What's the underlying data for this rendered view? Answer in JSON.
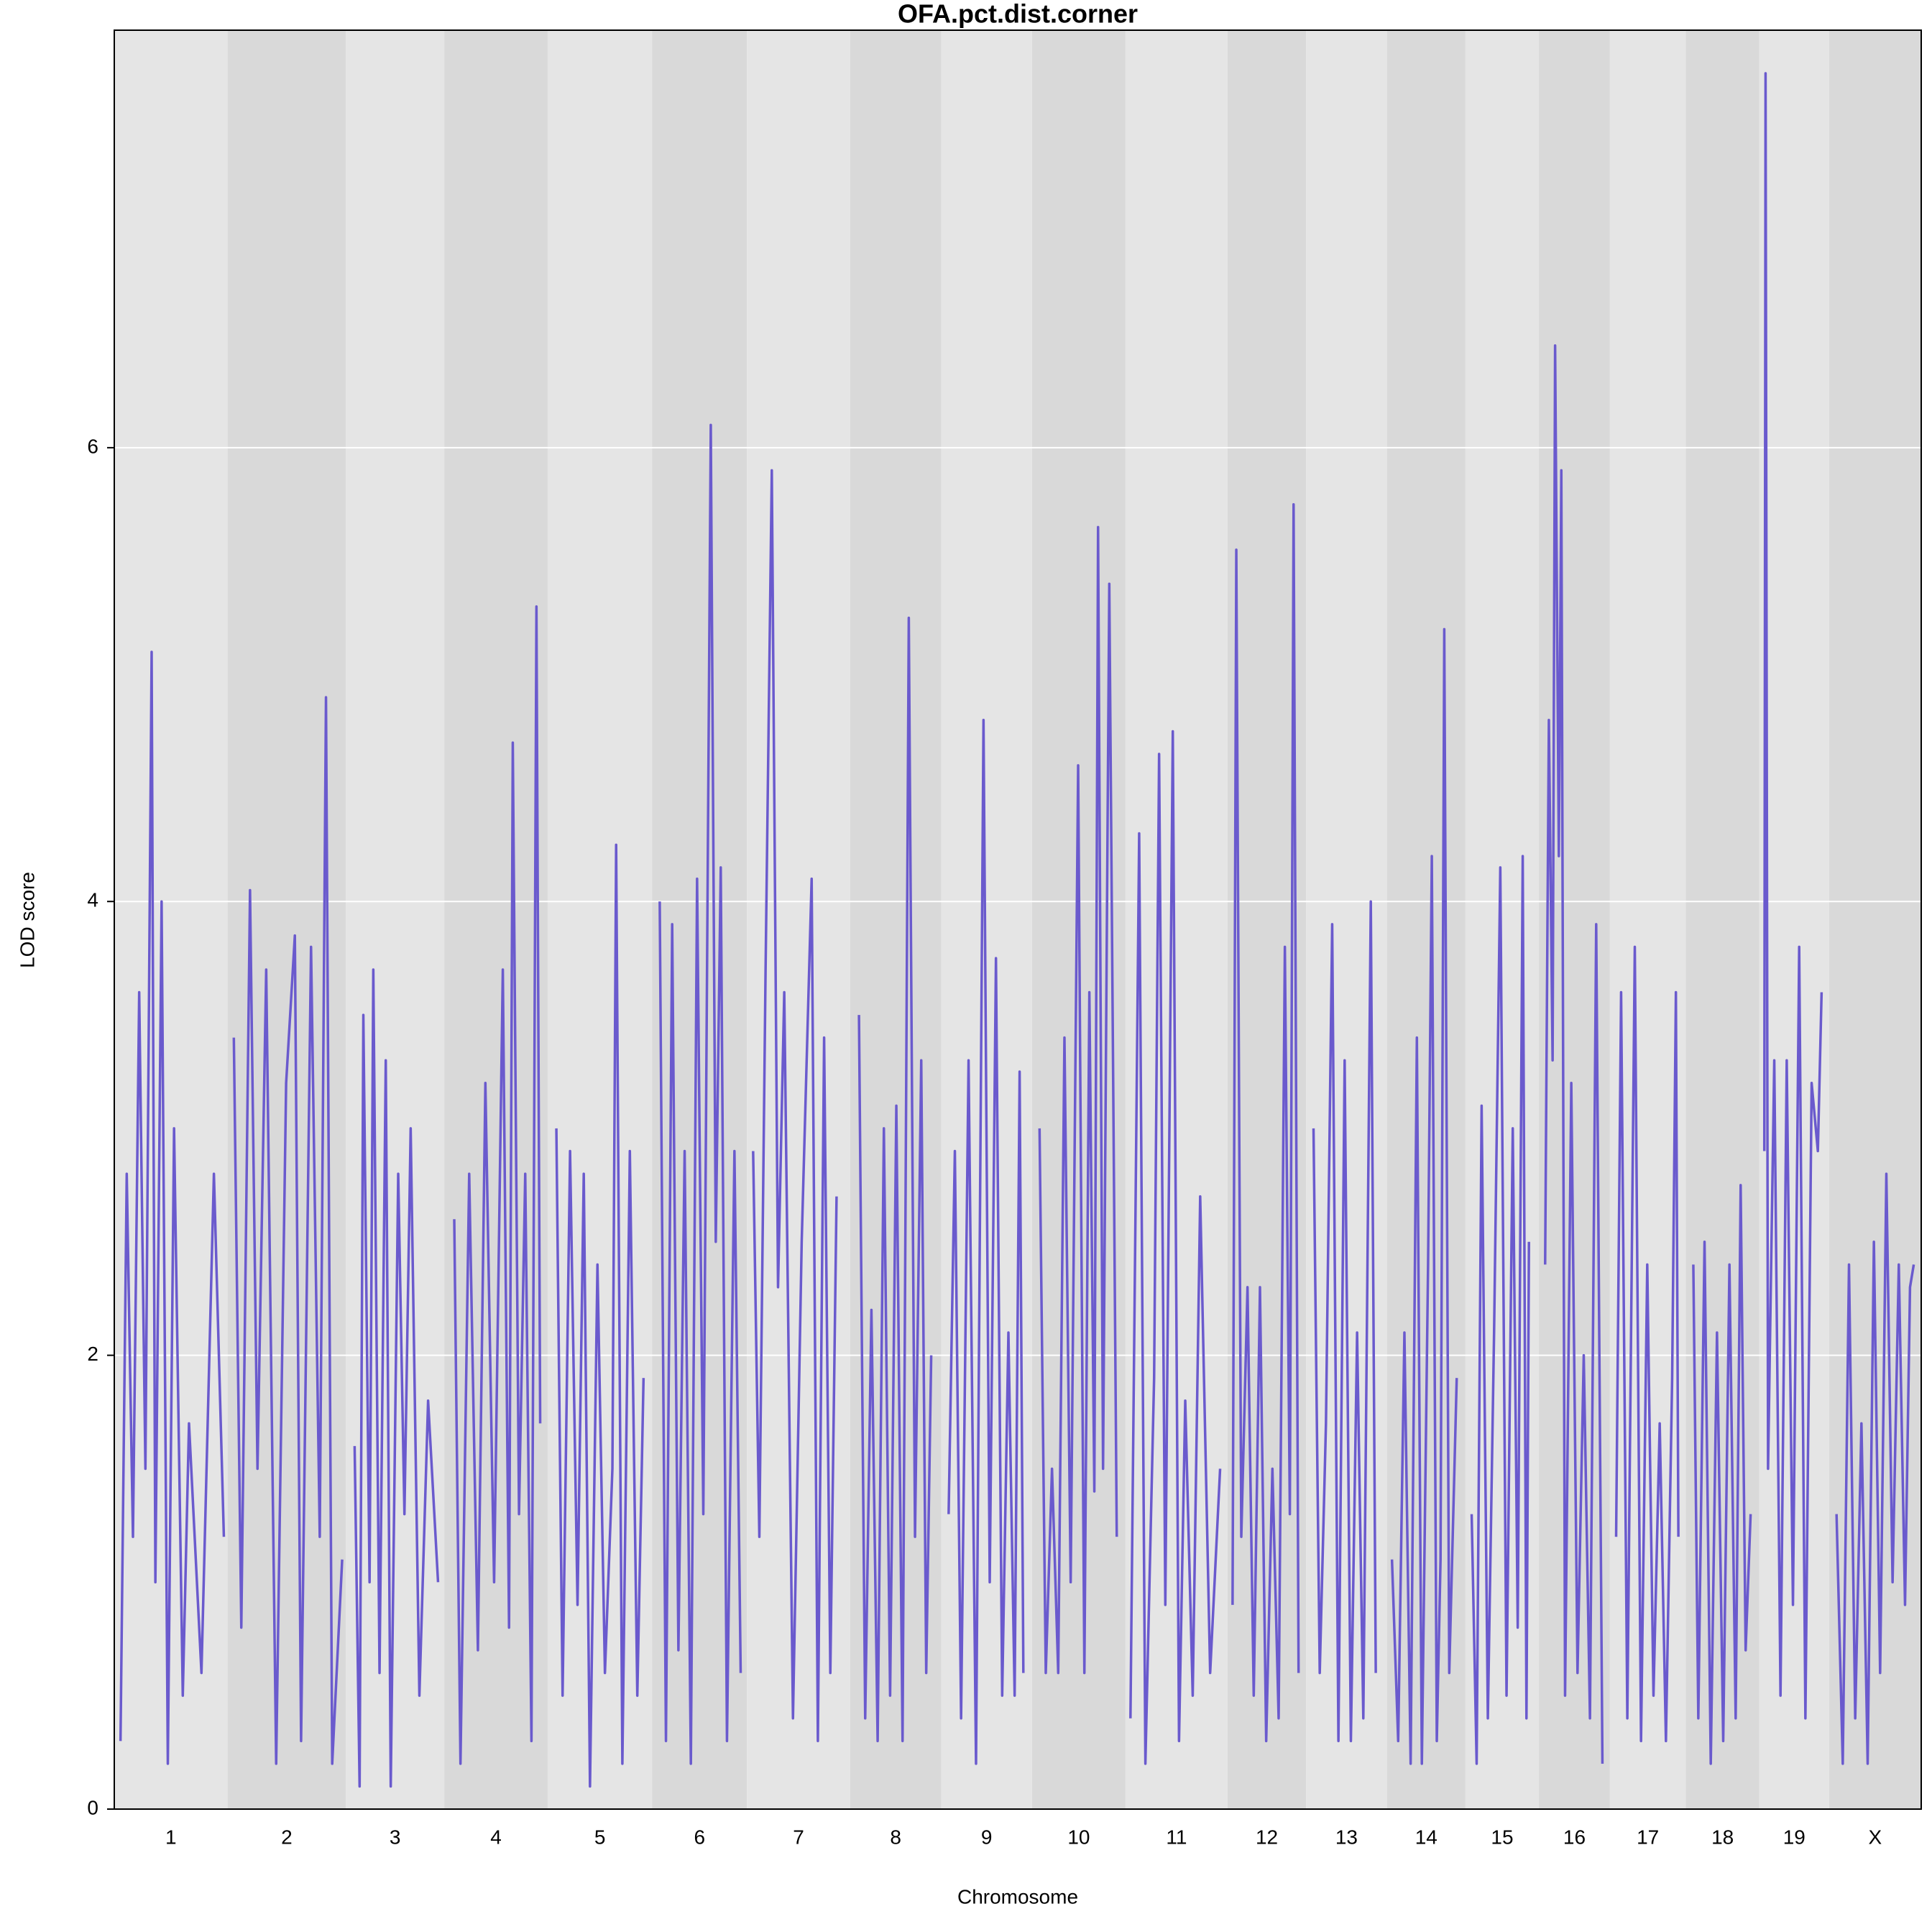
{
  "chart_data": {
    "type": "line",
    "title": "OFA.pct.dist.corner",
    "xlabel": "Chromosome",
    "ylabel": "LOD score",
    "color": "#6a5acd",
    "band_colors": [
      "#e5e5e5",
      "#d9d9d9"
    ],
    "grid": true,
    "xlim": [
      0,
      1451
    ],
    "ylim": [
      0,
      7.84
    ],
    "yticks": [
      0,
      2,
      4,
      6
    ],
    "chromosomes": [
      {
        "name": "1",
        "start": 0,
        "end": 91,
        "x": [
          5,
          10,
          15,
          20,
          25,
          30,
          33,
          38,
          43,
          48,
          55,
          60,
          70,
          80,
          88
        ],
        "lod": [
          0.3,
          2.8,
          1.2,
          3.6,
          1.5,
          5.1,
          1.0,
          4.0,
          0.2,
          3.0,
          0.5,
          1.7,
          0.6,
          2.8,
          1.2
        ]
      },
      {
        "name": "2",
        "start": 91,
        "end": 186,
        "x": [
          96,
          102,
          109,
          115,
          122,
          130,
          138,
          145,
          150,
          158,
          165,
          170,
          175,
          183
        ],
        "lod": [
          3.4,
          0.8,
          4.05,
          1.5,
          3.7,
          0.2,
          3.2,
          3.85,
          0.3,
          3.8,
          1.2,
          4.9,
          0.2,
          1.1
        ]
      },
      {
        "name": "3",
        "start": 186,
        "end": 265,
        "x": [
          193,
          197,
          200,
          205,
          208,
          213,
          218,
          222,
          228,
          233,
          238,
          245,
          252,
          260
        ],
        "lod": [
          1.6,
          0.1,
          3.5,
          1.0,
          3.7,
          0.6,
          3.3,
          0.1,
          2.8,
          1.3,
          3.0,
          0.5,
          1.8,
          1.0
        ]
      },
      {
        "name": "4",
        "start": 265,
        "end": 348,
        "x": [
          273,
          278,
          285,
          292,
          298,
          305,
          312,
          317,
          320,
          325,
          330,
          335,
          339,
          342
        ],
        "lod": [
          2.6,
          0.2,
          2.8,
          0.7,
          3.2,
          1.0,
          3.7,
          0.8,
          4.7,
          1.3,
          2.8,
          0.3,
          5.3,
          1.7
        ]
      },
      {
        "name": "5",
        "start": 348,
        "end": 432,
        "x": [
          355,
          360,
          366,
          372,
          377,
          382,
          388,
          394,
          400,
          403,
          408,
          414,
          420,
          425
        ],
        "lod": [
          3.0,
          0.5,
          2.9,
          0.9,
          2.8,
          0.1,
          2.4,
          0.6,
          1.5,
          4.25,
          0.2,
          2.9,
          0.5,
          1.9
        ]
      },
      {
        "name": "6",
        "start": 432,
        "end": 508,
        "x": [
          438,
          443,
          448,
          453,
          458,
          463,
          468,
          473,
          479,
          483,
          487,
          492,
          498,
          503
        ],
        "lod": [
          4.0,
          0.3,
          3.9,
          0.7,
          2.9,
          0.2,
          4.1,
          1.3,
          6.1,
          2.5,
          4.15,
          0.3,
          2.9,
          0.6
        ]
      },
      {
        "name": "7",
        "start": 508,
        "end": 591,
        "x": [
          513,
          518,
          523,
          528,
          533,
          538,
          545,
          552,
          560,
          565,
          570,
          575,
          580
        ],
        "lod": [
          2.9,
          1.2,
          3.7,
          5.9,
          2.3,
          3.6,
          0.4,
          2.5,
          4.1,
          0.3,
          3.4,
          0.6,
          2.7
        ]
      },
      {
        "name": "8",
        "start": 591,
        "end": 664,
        "x": [
          598,
          603,
          608,
          613,
          618,
          623,
          628,
          633,
          638,
          643,
          648,
          652,
          656
        ],
        "lod": [
          3.5,
          0.4,
          2.2,
          0.3,
          3.0,
          0.5,
          3.1,
          0.3,
          5.25,
          1.2,
          3.3,
          0.6,
          2.0
        ]
      },
      {
        "name": "9",
        "start": 664,
        "end": 737,
        "x": [
          670,
          675,
          680,
          686,
          692,
          698,
          703,
          708,
          713,
          718,
          723,
          727,
          730
        ],
        "lod": [
          1.3,
          2.9,
          0.4,
          3.3,
          0.2,
          4.8,
          1.0,
          3.75,
          0.5,
          2.1,
          0.5,
          3.25,
          0.6
        ]
      },
      {
        "name": "10",
        "start": 737,
        "end": 812,
        "x": [
          743,
          748,
          753,
          758,
          763,
          768,
          774,
          779,
          783,
          787,
          790,
          794,
          799,
          805
        ],
        "lod": [
          3.0,
          0.6,
          1.5,
          0.6,
          3.4,
          1.0,
          4.6,
          0.6,
          3.6,
          1.4,
          5.65,
          1.5,
          5.4,
          1.2
        ]
      },
      {
        "name": "11",
        "start": 812,
        "end": 894,
        "x": [
          816,
          820,
          823,
          828,
          835,
          839,
          844,
          850,
          855,
          860,
          866,
          872,
          880,
          888
        ],
        "lod": [
          0.4,
          2.6,
          4.3,
          0.2,
          1.9,
          4.65,
          0.9,
          4.75,
          0.3,
          1.8,
          0.5,
          2.7,
          0.6,
          1.5
        ]
      },
      {
        "name": "12",
        "start": 894,
        "end": 957,
        "x": [
          898,
          901,
          905,
          910,
          915,
          920,
          925,
          930,
          935,
          940,
          944,
          947,
          951
        ],
        "lod": [
          0.9,
          5.55,
          1.2,
          2.3,
          0.5,
          2.3,
          0.3,
          1.5,
          0.4,
          3.8,
          1.3,
          5.75,
          0.6
        ]
      },
      {
        "name": "13",
        "start": 957,
        "end": 1022,
        "x": [
          963,
          968,
          973,
          978,
          983,
          988,
          993,
          998,
          1003,
          1009,
          1013
        ],
        "lod": [
          3.0,
          0.6,
          1.7,
          3.9,
          0.3,
          3.3,
          0.3,
          2.1,
          0.4,
          4.0,
          0.6
        ]
      },
      {
        "name": "14",
        "start": 1022,
        "end": 1085,
        "x": [
          1026,
          1031,
          1036,
          1041,
          1046,
          1050,
          1055,
          1058,
          1062,
          1065,
          1068,
          1072,
          1078
        ],
        "lod": [
          1.1,
          0.3,
          2.1,
          0.2,
          3.4,
          0.2,
          2.4,
          4.2,
          0.3,
          1.1,
          5.2,
          0.6,
          1.9
        ]
      },
      {
        "name": "15",
        "start": 1085,
        "end": 1144,
        "x": [
          1090,
          1094,
          1098,
          1103,
          1108,
          1113,
          1118,
          1123,
          1127,
          1131,
          1134,
          1136
        ],
        "lod": [
          1.3,
          0.2,
          3.1,
          0.4,
          2.1,
          4.15,
          0.5,
          3.0,
          0.8,
          4.2,
          0.4,
          2.5
        ]
      },
      {
        "name": "16",
        "start": 1144,
        "end": 1201,
        "x": [
          1149,
          1152,
          1155,
          1157,
          1160,
          1162,
          1165,
          1170,
          1175,
          1180,
          1185,
          1190,
          1195
        ],
        "lod": [
          2.4,
          4.8,
          3.3,
          6.45,
          4.2,
          5.9,
          0.5,
          3.2,
          0.6,
          2.0,
          0.4,
          3.9,
          0.2
        ]
      },
      {
        "name": "17",
        "start": 1201,
        "end": 1262,
        "x": [
          1206,
          1210,
          1215,
          1221,
          1226,
          1231,
          1236,
          1241,
          1246,
          1251,
          1254,
          1256
        ],
        "lod": [
          1.2,
          3.6,
          0.4,
          3.8,
          0.3,
          2.4,
          0.5,
          1.7,
          0.3,
          1.9,
          3.6,
          1.2
        ]
      },
      {
        "name": "18",
        "start": 1262,
        "end": 1321,
        "x": [
          1268,
          1272,
          1277,
          1282,
          1287,
          1292,
          1297,
          1302,
          1306,
          1310,
          1314
        ],
        "lod": [
          2.4,
          0.4,
          2.5,
          0.2,
          2.1,
          0.3,
          2.4,
          0.4,
          2.75,
          0.7,
          1.3
        ]
      },
      {
        "name": "19",
        "start": 1321,
        "end": 1377,
        "x": [
          1325,
          1326,
          1328,
          1333,
          1338,
          1343,
          1348,
          1353,
          1358,
          1363,
          1368,
          1371
        ],
        "lod": [
          2.9,
          7.65,
          1.5,
          3.3,
          0.5,
          3.3,
          0.9,
          3.8,
          0.4,
          3.2,
          2.9,
          3.6
        ]
      },
      {
        "name": "X",
        "start": 1377,
        "end": 1451,
        "x": [
          1383,
          1388,
          1393,
          1398,
          1403,
          1408,
          1413,
          1418,
          1423,
          1428,
          1433,
          1438,
          1442,
          1445
        ],
        "lod": [
          1.3,
          0.2,
          2.4,
          0.4,
          1.7,
          0.2,
          2.5,
          0.6,
          2.8,
          1.0,
          2.4,
          0.9,
          2.3,
          2.4
        ]
      }
    ]
  }
}
